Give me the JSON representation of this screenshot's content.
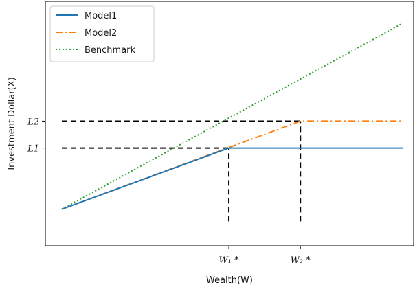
{
  "chart_data": {
    "type": "line",
    "title": "",
    "xlabel": "Wealth(W)",
    "ylabel": "Investment Dollar(X)",
    "xlim": [
      0,
      10
    ],
    "ylim": [
      0,
      10
    ],
    "x_ticks": [
      {
        "value": 4.9,
        "label": "W₁ *"
      },
      {
        "value": 7.0,
        "label": "W₂ *"
      }
    ],
    "y_ticks": [
      {
        "value": 4.0,
        "label": "L1"
      },
      {
        "value": 5.1,
        "label": "L2"
      }
    ],
    "series": [
      {
        "name": "Model1",
        "style": "solid",
        "color": "#1f77b4",
        "points": [
          [
            0,
            1.5
          ],
          [
            4.9,
            4.0
          ],
          [
            10,
            4.0
          ]
        ]
      },
      {
        "name": "Model2",
        "style": "dashdot",
        "color": "#ff7f0e",
        "points": [
          [
            0,
            1.5
          ],
          [
            7.0,
            5.1
          ],
          [
            10,
            5.1
          ]
        ]
      },
      {
        "name": "Benchmark",
        "style": "dotted",
        "color": "#2ca02c",
        "points": [
          [
            0,
            1.5
          ],
          [
            10,
            9.1
          ]
        ]
      }
    ],
    "reference_lines": [
      {
        "type": "h",
        "value": 4.0,
        "from": 0,
        "to": 4.9,
        "style": "dashed",
        "color": "#000000"
      },
      {
        "type": "h",
        "value": 5.1,
        "from": 0,
        "to": 7.0,
        "style": "dashed",
        "color": "#000000"
      },
      {
        "type": "v",
        "value": 4.9,
        "from": 1.0,
        "to": 4.0,
        "style": "dashed",
        "color": "#000000"
      },
      {
        "type": "v",
        "value": 7.0,
        "from": 1.0,
        "to": 5.1,
        "style": "dashed",
        "color": "#000000"
      }
    ],
    "legend": {
      "position": "top-left",
      "entries": [
        "Model1",
        "Model2",
        "Benchmark"
      ]
    },
    "grid": false
  }
}
